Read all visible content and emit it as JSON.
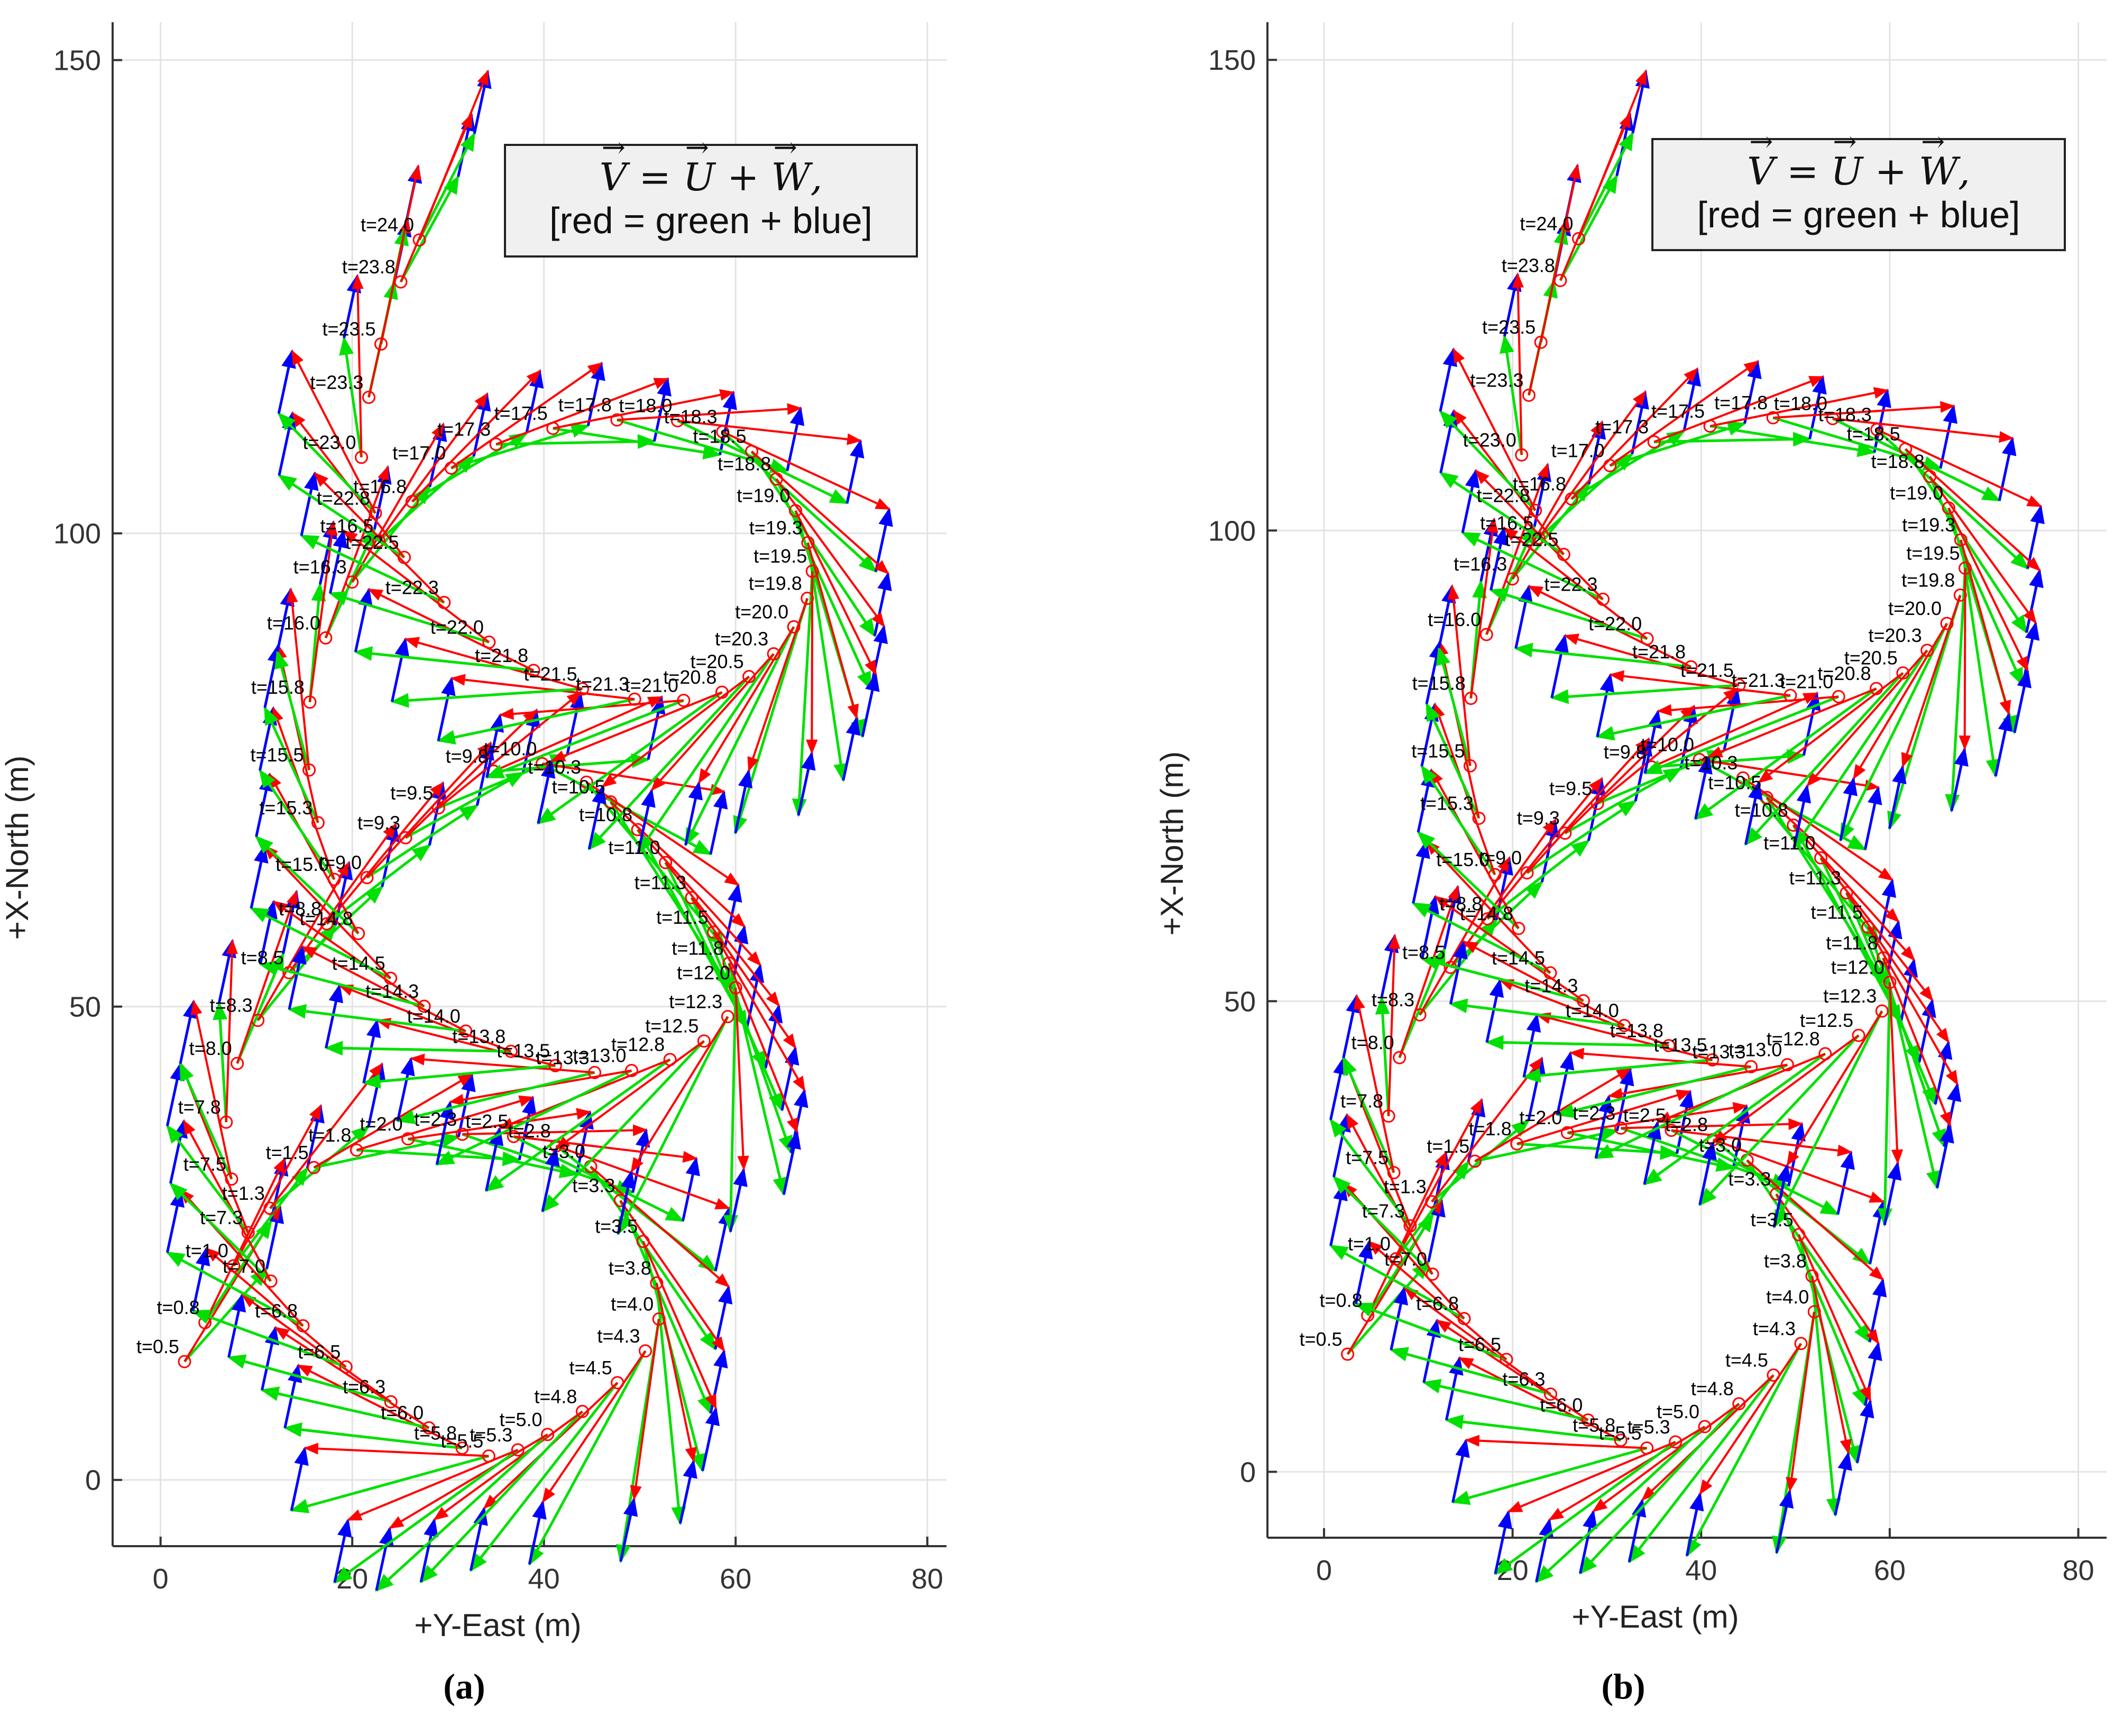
{
  "figure": {
    "captions": [
      "(a)",
      "(b)"
    ],
    "annotation": {
      "equation_parts": [
        "V",
        "=",
        "U",
        "+",
        "W",
        ","
      ],
      "legend_text": "[red = green + blue]"
    },
    "colors": {
      "resultant": "#ff0000",
      "airspeed": "#00e000",
      "wind": "#0000ff",
      "marker": "#ff0000",
      "label": "#000000"
    }
  },
  "chart_data": [
    {
      "type": "quiver",
      "panel": "a",
      "xlabel": "+Y-East (m)",
      "ylabel": "+X-North (m)",
      "xlim": [
        -5,
        82
      ],
      "ylim": [
        -7,
        154
      ],
      "xticks": [
        0,
        20,
        40,
        60,
        80
      ],
      "yticks": [
        0,
        50,
        100,
        150
      ],
      "grid": true,
      "vector_labels": {
        "red": "V",
        "green": "U",
        "blue": "W"
      },
      "track": {
        "t_start": 0.5,
        "t_end": 24.0,
        "label_step": 0.25,
        "waypoints": [
          {
            "t": 0.5,
            "east": 2.5,
            "north": 12.5
          },
          {
            "t": 1.5,
            "east": 16.0,
            "north": 33.0
          },
          {
            "t": 2.8,
            "east": 42.0,
            "north": 35.0
          },
          {
            "t": 4.0,
            "east": 52.0,
            "north": 17.0
          },
          {
            "t": 5.2,
            "east": 38.0,
            "north": 3.5
          },
          {
            "t": 6.0,
            "east": 28.0,
            "north": 5.5
          },
          {
            "t": 7.0,
            "east": 11.5,
            "north": 21.0
          },
          {
            "t": 8.0,
            "east": 8.0,
            "north": 44.0
          },
          {
            "t": 9.5,
            "east": 29.0,
            "north": 71.0
          },
          {
            "t": 10.2,
            "east": 44.0,
            "north": 74.0
          },
          {
            "t": 12.0,
            "east": 60.0,
            "north": 52.0
          },
          {
            "t": 13.2,
            "east": 46.0,
            "north": 43.0
          },
          {
            "t": 14.5,
            "east": 24.0,
            "north": 53.0
          },
          {
            "t": 15.5,
            "east": 15.5,
            "north": 75.0
          },
          {
            "t": 16.2,
            "east": 19.5,
            "north": 94.0
          },
          {
            "t": 17.2,
            "east": 34.0,
            "north": 109.0
          },
          {
            "t": 18.2,
            "east": 58.0,
            "north": 111.0
          },
          {
            "t": 19.5,
            "east": 68.0,
            "north": 96.0
          },
          {
            "t": 20.8,
            "east": 58.0,
            "north": 83.0
          },
          {
            "t": 21.8,
            "east": 38.0,
            "north": 86.0
          },
          {
            "t": 22.8,
            "east": 22.0,
            "north": 103.0
          },
          {
            "t": 23.5,
            "east": 23.0,
            "north": 120.0
          },
          {
            "t": 24.0,
            "east": 27.0,
            "north": 131.0
          }
        ]
      },
      "wind_vector": {
        "east": 1.4,
        "north": 6.6
      }
    },
    {
      "type": "quiver",
      "panel": "b",
      "xlabel": "+Y-East (m)",
      "ylabel": "+X-North (m)",
      "xlim": [
        -6,
        83
      ],
      "ylim": [
        -7,
        154
      ],
      "xticks": [
        0,
        20,
        40,
        60,
        80
      ],
      "yticks": [
        0,
        50,
        100,
        150
      ],
      "grid": true,
      "vector_labels": {
        "red": "V",
        "green": "U",
        "blue": "W"
      },
      "track": {
        "t_start": 0.5,
        "t_end": 24.0,
        "label_step": 0.25,
        "waypoints": [
          {
            "t": 0.5,
            "east": 2.5,
            "north": 12.5
          },
          {
            "t": 1.5,
            "east": 16.0,
            "north": 33.0
          },
          {
            "t": 2.8,
            "east": 42.0,
            "north": 35.0
          },
          {
            "t": 4.0,
            "east": 52.0,
            "north": 17.0
          },
          {
            "t": 5.2,
            "east": 38.0,
            "north": 3.5
          },
          {
            "t": 6.0,
            "east": 28.0,
            "north": 5.5
          },
          {
            "t": 7.0,
            "east": 11.5,
            "north": 21.0
          },
          {
            "t": 8.0,
            "east": 8.0,
            "north": 44.0
          },
          {
            "t": 9.5,
            "east": 29.0,
            "north": 71.0
          },
          {
            "t": 10.2,
            "east": 44.0,
            "north": 74.0
          },
          {
            "t": 12.0,
            "east": 60.0,
            "north": 52.0
          },
          {
            "t": 13.2,
            "east": 46.0,
            "north": 43.0
          },
          {
            "t": 14.5,
            "east": 24.0,
            "north": 53.0
          },
          {
            "t": 15.5,
            "east": 15.5,
            "north": 75.0
          },
          {
            "t": 16.2,
            "east": 19.5,
            "north": 94.0
          },
          {
            "t": 17.2,
            "east": 34.0,
            "north": 109.0
          },
          {
            "t": 18.2,
            "east": 58.0,
            "north": 111.0
          },
          {
            "t": 19.5,
            "east": 68.0,
            "north": 96.0
          },
          {
            "t": 20.8,
            "east": 58.0,
            "north": 83.0
          },
          {
            "t": 21.8,
            "east": 38.0,
            "north": 86.0
          },
          {
            "t": 22.8,
            "east": 22.0,
            "north": 103.0
          },
          {
            "t": 23.5,
            "east": 23.0,
            "north": 120.0
          },
          {
            "t": 24.0,
            "east": 27.0,
            "north": 131.0
          }
        ]
      },
      "wind_vector": {
        "east": 1.4,
        "north": 6.6
      }
    }
  ]
}
